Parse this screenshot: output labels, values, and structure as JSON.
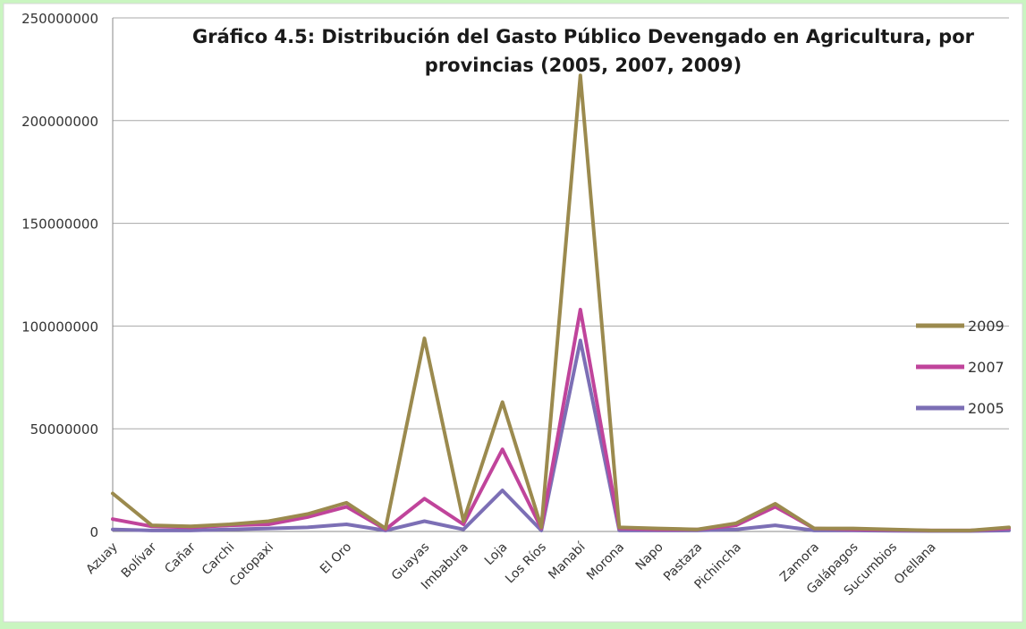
{
  "chart_data": {
    "type": "line",
    "title_line1": "Gráfico 4.5: Distribución del Gasto Público Devengado en Agricultura, por",
    "title_line2": "provincias (2005, 2007, 2009)",
    "ylim": [
      0,
      250000000
    ],
    "yticks": [
      0,
      50000000,
      100000000,
      150000000,
      200000000,
      250000000
    ],
    "ytick_labels": [
      "0",
      "50000000",
      "100000000",
      "150000000",
      "200000000",
      "250000000"
    ],
    "grid": true,
    "legend_position": "right",
    "x_labels": [
      "Azuay",
      "Bolívar",
      "Cañar",
      "Carchi",
      "Cotopaxi",
      "",
      "El Oro",
      "",
      "Guayas",
      "Imbabura",
      "Loja",
      "Los Ríos",
      "Manabí",
      "Morona",
      "Napo",
      "Pastaza",
      "Pichincha",
      "",
      "Zamora",
      "Galápagos",
      "Sucumbios",
      "Orellana",
      "",
      ""
    ],
    "series": [
      {
        "name": "2009",
        "color": "#9b8a4e",
        "values": [
          18500000,
          3000000,
          2500000,
          3500000,
          5000000,
          8500000,
          14000000,
          1500000,
          94000000,
          5000000,
          63000000,
          2000000,
          222000000,
          2000000,
          1500000,
          1000000,
          4000000,
          13500000,
          1500000,
          1500000,
          1000000,
          500000,
          500000,
          2000000
        ]
      },
      {
        "name": "2007",
        "color": "#c0449b",
        "values": [
          6000000,
          2500000,
          2000000,
          3000000,
          3500000,
          7000000,
          12000000,
          1000000,
          16000000,
          3500000,
          40000000,
          1500000,
          108000000,
          1500000,
          1000000,
          1000000,
          3000000,
          12000000,
          1500000,
          1000000,
          800000,
          500000,
          500000,
          1500000
        ]
      },
      {
        "name": "2005",
        "color": "#7c6fb5",
        "values": [
          1000000,
          500000,
          500000,
          1000000,
          1500000,
          2000000,
          3500000,
          500000,
          5000000,
          1000000,
          20000000,
          500000,
          93000000,
          500000,
          500000,
          500000,
          1000000,
          3000000,
          500000,
          500000,
          300000,
          200000,
          200000,
          500000
        ]
      }
    ]
  }
}
